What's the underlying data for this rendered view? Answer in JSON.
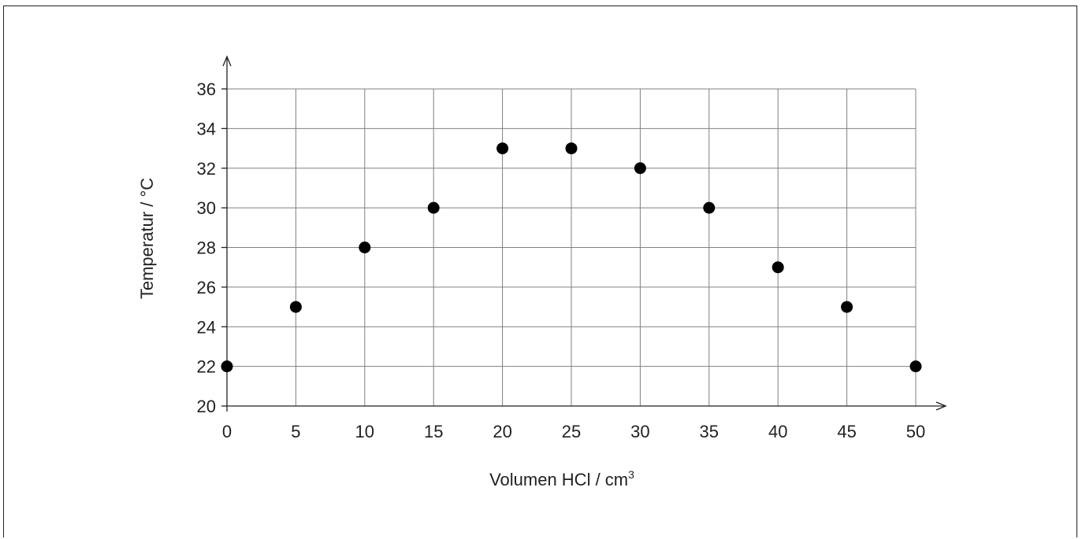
{
  "chart_data": {
    "type": "scatter",
    "title": "",
    "xlabel": "Volumen HCl / cm",
    "xlabel_sup": "3",
    "ylabel": "Temperatur / °C",
    "xlim": [
      0,
      50
    ],
    "ylim": [
      20,
      36
    ],
    "x_ticks": [
      "0",
      "5",
      "10",
      "15",
      "20",
      "25",
      "30",
      "35",
      "40",
      "45",
      "50"
    ],
    "y_ticks": [
      "20",
      "22",
      "24",
      "26",
      "28",
      "30",
      "32",
      "34",
      "36"
    ],
    "grid": true,
    "legend": "none",
    "series": [
      {
        "x": [
          0,
          5,
          10,
          15,
          20,
          25,
          30,
          35,
          40,
          45,
          50
        ],
        "y": [
          22,
          25,
          28,
          30,
          33,
          33,
          32,
          30,
          27,
          25,
          22
        ]
      }
    ],
    "colors": {
      "points": "#000000",
      "grid": "#808080",
      "axis": "#231f20"
    }
  }
}
